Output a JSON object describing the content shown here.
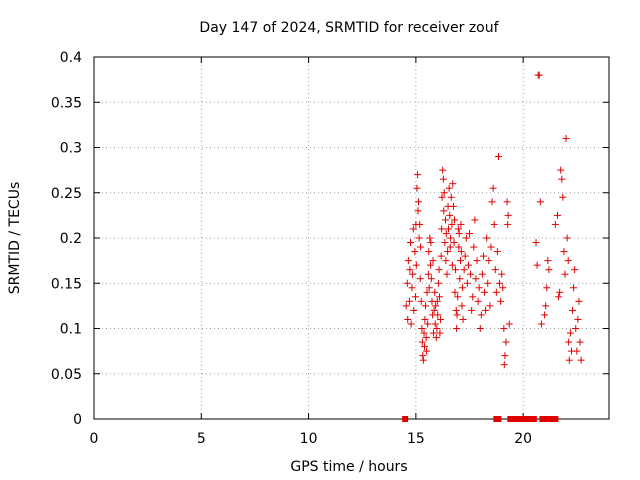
{
  "chart_data": {
    "type": "scatter",
    "title": "Day 147 of 2024, SRMTID for receiver zouf",
    "xlabel": "GPS time / hours",
    "ylabel": "SRMTID / TECUs",
    "xlim": [
      0,
      24
    ],
    "ylim": [
      0,
      0.4
    ],
    "x_ticks": [
      0,
      5,
      10,
      15,
      20
    ],
    "y_ticks": [
      0,
      0.05,
      0.1,
      0.15,
      0.2,
      0.25,
      0.3,
      0.35,
      0.4
    ],
    "x_tick_labels": [
      "0",
      "5",
      "10",
      "15",
      "20"
    ],
    "y_tick_labels": [
      "0",
      "0.05",
      "0.1",
      "0.15",
      "0.2",
      "0.25",
      "0.3",
      "0.35",
      "0.4"
    ],
    "grid": true,
    "series": [
      {
        "marker": "plus",
        "color": "#e00000",
        "points": [
          [
            14.55,
            0.125
          ],
          [
            14.6,
            0.15
          ],
          [
            14.62,
            0.11
          ],
          [
            14.65,
            0.175
          ],
          [
            14.7,
            0.13
          ],
          [
            14.72,
            0.165
          ],
          [
            14.75,
            0.195
          ],
          [
            14.78,
            0.105
          ],
          [
            14.82,
            0.145
          ],
          [
            14.85,
            0.16
          ],
          [
            14.88,
            0.21
          ],
          [
            14.9,
            0.12
          ],
          [
            14.95,
            0.185
          ],
          [
            14.98,
            0.135
          ],
          [
            15.0,
            0.215
          ],
          [
            15.02,
            0.17
          ],
          [
            15.05,
            0.255
          ],
          [
            15.08,
            0.27
          ],
          [
            15.1,
            0.23
          ],
          [
            15.12,
            0.24
          ],
          [
            15.15,
            0.2
          ],
          [
            15.18,
            0.215
          ],
          [
            15.2,
            0.155
          ],
          [
            15.22,
            0.19
          ],
          [
            15.25,
            0.13
          ],
          [
            15.28,
            0.1
          ],
          [
            15.3,
            0.085
          ],
          [
            15.32,
            0.07
          ],
          [
            15.35,
            0.065
          ],
          [
            15.38,
            0.095
          ],
          [
            15.4,
            0.08
          ],
          [
            15.42,
            0.11
          ],
          [
            15.45,
            0.125
          ],
          [
            15.48,
            0.09
          ],
          [
            15.5,
            0.075
          ],
          [
            15.52,
            0.14
          ],
          [
            15.55,
            0.105
          ],
          [
            15.58,
            0.16
          ],
          [
            15.6,
            0.185
          ],
          [
            15.62,
            0.145
          ],
          [
            15.65,
            0.2
          ],
          [
            15.68,
            0.17
          ],
          [
            15.7,
            0.195
          ],
          [
            15.72,
            0.155
          ],
          [
            15.75,
            0.13
          ],
          [
            15.78,
            0.115
          ],
          [
            15.8,
            0.175
          ],
          [
            15.82,
            0.095
          ],
          [
            15.85,
            0.12
          ],
          [
            15.88,
            0.14
          ],
          [
            15.9,
            0.105
          ],
          [
            15.92,
            0.125
          ],
          [
            15.95,
            0.09
          ],
          [
            15.98,
            0.1
          ],
          [
            16.0,
            0.13
          ],
          [
            16.02,
            0.115
          ],
          [
            16.05,
            0.15
          ],
          [
            16.08,
            0.165
          ],
          [
            16.1,
            0.135
          ],
          [
            16.12,
            0.095
          ],
          [
            16.15,
            0.11
          ],
          [
            16.18,
            0.18
          ],
          [
            16.2,
            0.21
          ],
          [
            16.22,
            0.245
          ],
          [
            16.25,
            0.275
          ],
          [
            16.28,
            0.265
          ],
          [
            16.3,
            0.23
          ],
          [
            16.32,
            0.25
          ],
          [
            16.35,
            0.195
          ],
          [
            16.38,
            0.22
          ],
          [
            16.4,
            0.175
          ],
          [
            16.42,
            0.205
          ],
          [
            16.45,
            0.16
          ],
          [
            16.48,
            0.185
          ],
          [
            16.5,
            0.235
          ],
          [
            16.52,
            0.21
          ],
          [
            16.55,
            0.255
          ],
          [
            16.58,
            0.225
          ],
          [
            16.6,
            0.19
          ],
          [
            16.62,
            0.2
          ],
          [
            16.65,
            0.245
          ],
          [
            16.68,
            0.215
          ],
          [
            16.7,
            0.17
          ],
          [
            16.72,
            0.26
          ],
          [
            16.75,
            0.235
          ],
          [
            16.78,
            0.195
          ],
          [
            16.8,
            0.22
          ],
          [
            16.82,
            0.14
          ],
          [
            16.85,
            0.165
          ],
          [
            16.88,
            0.12
          ],
          [
            16.9,
            0.1
          ],
          [
            16.92,
            0.115
          ],
          [
            16.95,
            0.135
          ],
          [
            16.98,
            0.21
          ],
          [
            17.0,
            0.19
          ],
          [
            17.02,
            0.205
          ],
          [
            17.05,
            0.155
          ],
          [
            17.08,
            0.175
          ],
          [
            17.1,
            0.215
          ],
          [
            17.12,
            0.185
          ],
          [
            17.15,
            0.125
          ],
          [
            17.18,
            0.145
          ],
          [
            17.2,
            0.11
          ],
          [
            17.25,
            0.165
          ],
          [
            17.3,
            0.18
          ],
          [
            17.35,
            0.2
          ],
          [
            17.4,
            0.15
          ],
          [
            17.45,
            0.17
          ],
          [
            17.5,
            0.205
          ],
          [
            17.55,
            0.16
          ],
          [
            17.6,
            0.12
          ],
          [
            17.65,
            0.135
          ],
          [
            17.7,
            0.19
          ],
          [
            17.75,
            0.22
          ],
          [
            17.8,
            0.155
          ],
          [
            17.85,
            0.175
          ],
          [
            17.9,
            0.13
          ],
          [
            17.95,
            0.145
          ],
          [
            18.0,
            0.1
          ],
          [
            18.05,
            0.115
          ],
          [
            18.1,
            0.16
          ],
          [
            18.15,
            0.18
          ],
          [
            18.2,
            0.14
          ],
          [
            18.25,
            0.12
          ],
          [
            18.3,
            0.2
          ],
          [
            18.35,
            0.15
          ],
          [
            18.4,
            0.175
          ],
          [
            18.45,
            0.125
          ],
          [
            18.5,
            0.19
          ],
          [
            18.55,
            0.24
          ],
          [
            18.6,
            0.255
          ],
          [
            18.65,
            0.215
          ],
          [
            18.7,
            0.165
          ],
          [
            18.75,
            0.14
          ],
          [
            18.8,
            0.185
          ],
          [
            18.85,
            0.29
          ],
          [
            18.9,
            0.15
          ],
          [
            18.95,
            0.13
          ],
          [
            19.0,
            0.16
          ],
          [
            19.05,
            0.145
          ],
          [
            19.1,
            0.1
          ],
          [
            19.12,
            0.06
          ],
          [
            19.15,
            0.07
          ],
          [
            19.2,
            0.085
          ],
          [
            19.25,
            0.24
          ],
          [
            19.28,
            0.215
          ],
          [
            19.3,
            0.225
          ],
          [
            19.35,
            0.105
          ],
          [
            20.6,
            0.195
          ],
          [
            20.65,
            0.17
          ],
          [
            20.7,
            0.38
          ],
          [
            20.75,
            0.38
          ],
          [
            20.8,
            0.24
          ],
          [
            20.85,
            0.105
          ],
          [
            21.0,
            0.115
          ],
          [
            21.05,
            0.125
          ],
          [
            21.1,
            0.145
          ],
          [
            21.15,
            0.175
          ],
          [
            21.2,
            0.165
          ],
          [
            21.5,
            0.215
          ],
          [
            21.6,
            0.225
          ],
          [
            21.65,
            0.135
          ],
          [
            21.7,
            0.14
          ],
          [
            21.75,
            0.275
          ],
          [
            21.8,
            0.265
          ],
          [
            21.85,
            0.245
          ],
          [
            21.9,
            0.185
          ],
          [
            21.95,
            0.16
          ],
          [
            22.0,
            0.31
          ],
          [
            22.05,
            0.2
          ],
          [
            22.1,
            0.175
          ],
          [
            22.12,
            0.085
          ],
          [
            22.15,
            0.065
          ],
          [
            22.2,
            0.095
          ],
          [
            22.25,
            0.075
          ],
          [
            22.3,
            0.12
          ],
          [
            22.35,
            0.145
          ],
          [
            22.4,
            0.165
          ],
          [
            22.45,
            0.1
          ],
          [
            22.5,
            0.075
          ],
          [
            22.55,
            0.11
          ],
          [
            22.6,
            0.13
          ],
          [
            22.65,
            0.085
          ],
          [
            22.7,
            0.065
          ]
        ]
      },
      {
        "marker": "square",
        "color": "#e00000",
        "points": [
          [
            14.5,
            0
          ],
          [
            18.75,
            0
          ],
          [
            18.85,
            0
          ],
          [
            19.4,
            0
          ],
          [
            19.6,
            0
          ],
          [
            19.8,
            0
          ],
          [
            19.95,
            0
          ],
          [
            20.1,
            0
          ],
          [
            20.3,
            0
          ],
          [
            20.5,
            0
          ],
          [
            20.9,
            0
          ],
          [
            21.1,
            0
          ],
          [
            21.3,
            0
          ],
          [
            21.5,
            0
          ]
        ]
      }
    ]
  }
}
